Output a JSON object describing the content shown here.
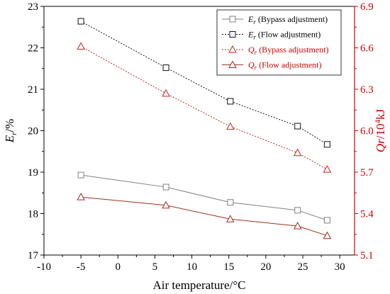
{
  "chart_data": {
    "type": "line",
    "title": "",
    "xlabel": "Air temperature/°C",
    "ylabel_left": {
      "var": "E",
      "sub": "r",
      "unit": "/%"
    },
    "ylabel_right": {
      "var": "Qr",
      "unit_prefix": "/10",
      "unit_sup": "4",
      "unit_suffix": "kJ"
    },
    "xlim": [
      -10,
      32
    ],
    "ylim_left": [
      17,
      23
    ],
    "ylim_right": [
      5.1,
      6.9
    ],
    "x_ticks": [
      -10,
      -5,
      0,
      5,
      10,
      15,
      20,
      25,
      30
    ],
    "y_ticks_left": [
      17,
      18,
      19,
      20,
      21,
      22,
      23
    ],
    "y_ticks_right": [
      "5.1",
      "5.4",
      "5.7",
      "6.0",
      "6.3",
      "6.6",
      "6.9"
    ],
    "grid": false,
    "legend_position": "top-right",
    "x": [
      -5,
      6.5,
      15.2,
      24.3,
      28.3
    ],
    "series": [
      {
        "name": "(Bypass adjustment)",
        "var": "E",
        "sub": "r",
        "axis": "left",
        "marker": "square",
        "line": "solid",
        "color": "#808080",
        "values": [
          18.93,
          18.64,
          18.27,
          18.08,
          17.84
        ]
      },
      {
        "name": "(Flow adjustment)",
        "var": "E",
        "sub": "r",
        "axis": "left",
        "marker": "square",
        "line": "dotted",
        "color": "#111111",
        "values": [
          22.64,
          21.52,
          20.71,
          20.11,
          19.67
        ]
      },
      {
        "name": "(Bypass adjustment)",
        "var": "Q",
        "sub": "r",
        "axis": "right",
        "marker": "triangle",
        "line": "dotted",
        "color": "#cc2222",
        "values": [
          6.61,
          6.27,
          6.03,
          5.84,
          5.72
        ]
      },
      {
        "name": "(Flow adjustment)",
        "var": "Q",
        "sub": "r",
        "axis": "right",
        "marker": "triangle",
        "line": "solid",
        "color": "#a0301e",
        "values": [
          5.52,
          5.46,
          5.36,
          5.31,
          5.24
        ]
      }
    ]
  },
  "colors": {
    "left_axis": "#000000",
    "right_axis": "#cc0000"
  }
}
